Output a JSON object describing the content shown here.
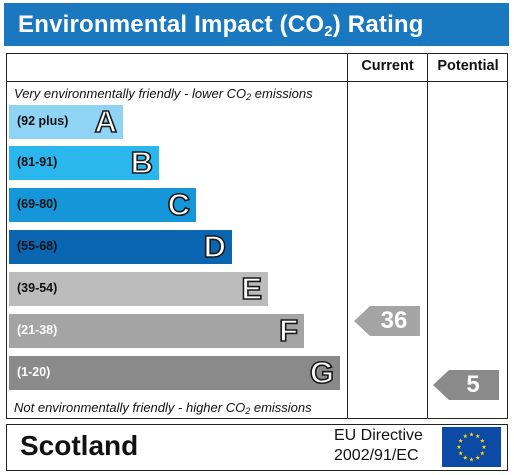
{
  "title": {
    "prefix": "Environmental Impact (CO",
    "subscript": "2",
    "suffix": ") Rating"
  },
  "columns": {
    "current": "Current",
    "potential": "Potential"
  },
  "captions": {
    "top_prefix": "Very environmentally friendly - lower CO",
    "top_sub": "2",
    "top_suffix": " emissions",
    "bottom_prefix": "Not environmentally friendly - higher CO",
    "bottom_sub": "2",
    "bottom_suffix": " emissions"
  },
  "bands": [
    {
      "range": "(92 plus)",
      "letter": "A",
      "color": "#8fd4f5",
      "range_color": "#111111"
    },
    {
      "range": "(81-91)",
      "letter": "B",
      "color": "#2cb6ee",
      "range_color": "#111111"
    },
    {
      "range": "(69-80)",
      "letter": "C",
      "color": "#1496d8",
      "range_color": "#111111"
    },
    {
      "range": "(55-68)",
      "letter": "D",
      "color": "#0a66b0",
      "range_color": "#111111"
    },
    {
      "range": "(39-54)",
      "letter": "E",
      "color": "#bcbcbc",
      "range_color": "#111111"
    },
    {
      "range": "(21-38)",
      "letter": "F",
      "color": "#a4a4a4",
      "range_color": "#ffffff"
    },
    {
      "range": "(1-20)",
      "letter": "G",
      "color": "#8a8a8a",
      "range_color": "#ffffff"
    }
  ],
  "ratings": {
    "current": {
      "value": "36",
      "band": "F",
      "color": "#a4a4a4"
    },
    "potential": {
      "value": "5",
      "band": "G",
      "color": "#8a8a8a"
    }
  },
  "footer": {
    "region": "Scotland",
    "directive_line1": "EU Directive",
    "directive_line2": "2002/91/EC"
  },
  "colors": {
    "title_bar": "#1a78c0",
    "eu_flag_blue": "#0d4aa6",
    "eu_flag_stars": "#ffdd00"
  }
}
